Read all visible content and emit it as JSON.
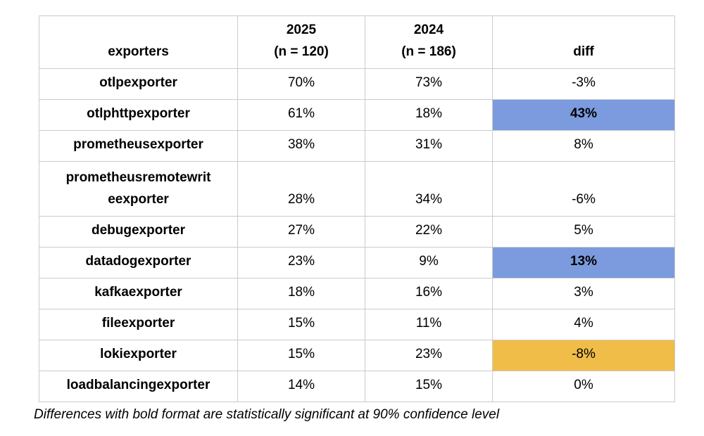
{
  "chart_data": {
    "type": "table",
    "columns": [
      {
        "key": "exporter",
        "label": "exporters"
      },
      {
        "key": "y2025",
        "label": "2025\n(n = 120)"
      },
      {
        "key": "y2024",
        "label": "2024\n(n = 186)"
      },
      {
        "key": "diff",
        "label": "diff"
      }
    ],
    "rows": [
      {
        "exporter": "otlpexporter",
        "y2025": "70%",
        "y2024": "73%",
        "diff": "-3%",
        "diff_highlight": "none",
        "diff_bold": false,
        "tall": false
      },
      {
        "exporter": "otlphttpexporter",
        "y2025": "61%",
        "y2024": "18%",
        "diff": "43%",
        "diff_highlight": "blue",
        "diff_bold": true,
        "tall": false
      },
      {
        "exporter": "prometheusexporter",
        "y2025": "38%",
        "y2024": "31%",
        "diff": "8%",
        "diff_highlight": "none",
        "diff_bold": false,
        "tall": false
      },
      {
        "exporter": "prometheusremotewrit\neexporter",
        "y2025": "28%",
        "y2024": "34%",
        "diff": "-6%",
        "diff_highlight": "none",
        "diff_bold": false,
        "tall": true
      },
      {
        "exporter": "debugexporter",
        "y2025": "27%",
        "y2024": "22%",
        "diff": "5%",
        "diff_highlight": "none",
        "diff_bold": false,
        "tall": false
      },
      {
        "exporter": "datadogexporter",
        "y2025": "23%",
        "y2024": "9%",
        "diff": "13%",
        "diff_highlight": "blue",
        "diff_bold": true,
        "tall": false
      },
      {
        "exporter": "kafkaexporter",
        "y2025": "18%",
        "y2024": "16%",
        "diff": "3%",
        "diff_highlight": "none",
        "diff_bold": false,
        "tall": false
      },
      {
        "exporter": "fileexporter",
        "y2025": "15%",
        "y2024": "11%",
        "diff": "4%",
        "diff_highlight": "none",
        "diff_bold": false,
        "tall": false
      },
      {
        "exporter": "lokiexporter",
        "y2025": "15%",
        "y2024": "23%",
        "diff": "-8%",
        "diff_highlight": "orange",
        "diff_bold": false,
        "tall": false
      },
      {
        "exporter": "loadbalancingexporter",
        "y2025": "14%",
        "y2024": "15%",
        "diff": "0%",
        "diff_highlight": "none",
        "diff_bold": false,
        "tall": false
      }
    ],
    "footnote": "Differences with bold format are statistically significant at 90% confidence level"
  },
  "colors": {
    "highlight_blue": "#7b9bde",
    "highlight_orange": "#f0bd49",
    "grid_line": "#cbcbcb",
    "text": "#000000",
    "background": "#ffffff"
  }
}
